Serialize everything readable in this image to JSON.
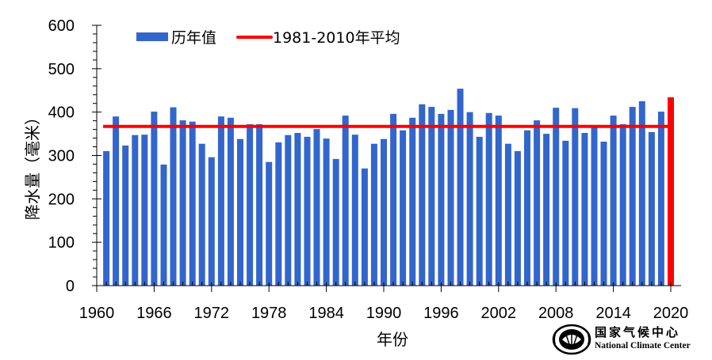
{
  "chart_data": {
    "type": "bar",
    "title": "",
    "xlabel": "年份",
    "ylabel": "降水量（毫米）",
    "ylim": [
      0,
      600
    ],
    "yticks": [
      0,
      100,
      200,
      300,
      400,
      500,
      600
    ],
    "xlim": [
      1960,
      2020
    ],
    "xticks": [
      1960,
      1966,
      1972,
      1978,
      1984,
      1990,
      1996,
      2002,
      2008,
      2014,
      2020
    ],
    "grid": false,
    "legend_position": "top-left inside",
    "categories": [
      1961,
      1962,
      1963,
      1964,
      1965,
      1966,
      1967,
      1968,
      1969,
      1970,
      1971,
      1972,
      1973,
      1974,
      1975,
      1976,
      1977,
      1978,
      1979,
      1980,
      1981,
      1982,
      1983,
      1984,
      1985,
      1986,
      1987,
      1988,
      1989,
      1990,
      1991,
      1992,
      1993,
      1994,
      1995,
      1996,
      1997,
      1998,
      1999,
      2000,
      2001,
      2002,
      2003,
      2004,
      2005,
      2006,
      2007,
      2008,
      2009,
      2010,
      2011,
      2012,
      2013,
      2014,
      2015,
      2016,
      2017,
      2018,
      2019,
      2020
    ],
    "series": [
      {
        "name": "历年值",
        "type": "bar",
        "color": "#3366cc",
        "values": [
          310,
          390,
          323,
          347,
          348,
          401,
          279,
          411,
          381,
          378,
          327,
          296,
          390,
          387,
          338,
          372,
          372,
          285,
          330,
          347,
          352,
          343,
          361,
          339,
          292,
          392,
          348,
          270,
          327,
          338,
          396,
          358,
          387,
          418,
          412,
          396,
          405,
          454,
          400,
          343,
          398,
          392,
          327,
          310,
          358,
          381,
          350,
          410,
          334,
          409,
          352,
          365,
          332,
          392,
          372,
          412,
          425,
          354,
          401,
          434
        ]
      },
      {
        "name": "1981-2010年平均",
        "type": "line",
        "color": "#ff0000",
        "value": 367
      }
    ],
    "highlight": {
      "category": 2020,
      "color": "#ff0000"
    }
  },
  "legend": {
    "bar_label": "历年值",
    "line_label": "1981-2010年平均"
  },
  "axes": {
    "x_title": "年份",
    "y_title": "降水量（毫米）"
  },
  "logo": {
    "name_cn": "国家气候中心",
    "name_en": "National Climate Center"
  }
}
